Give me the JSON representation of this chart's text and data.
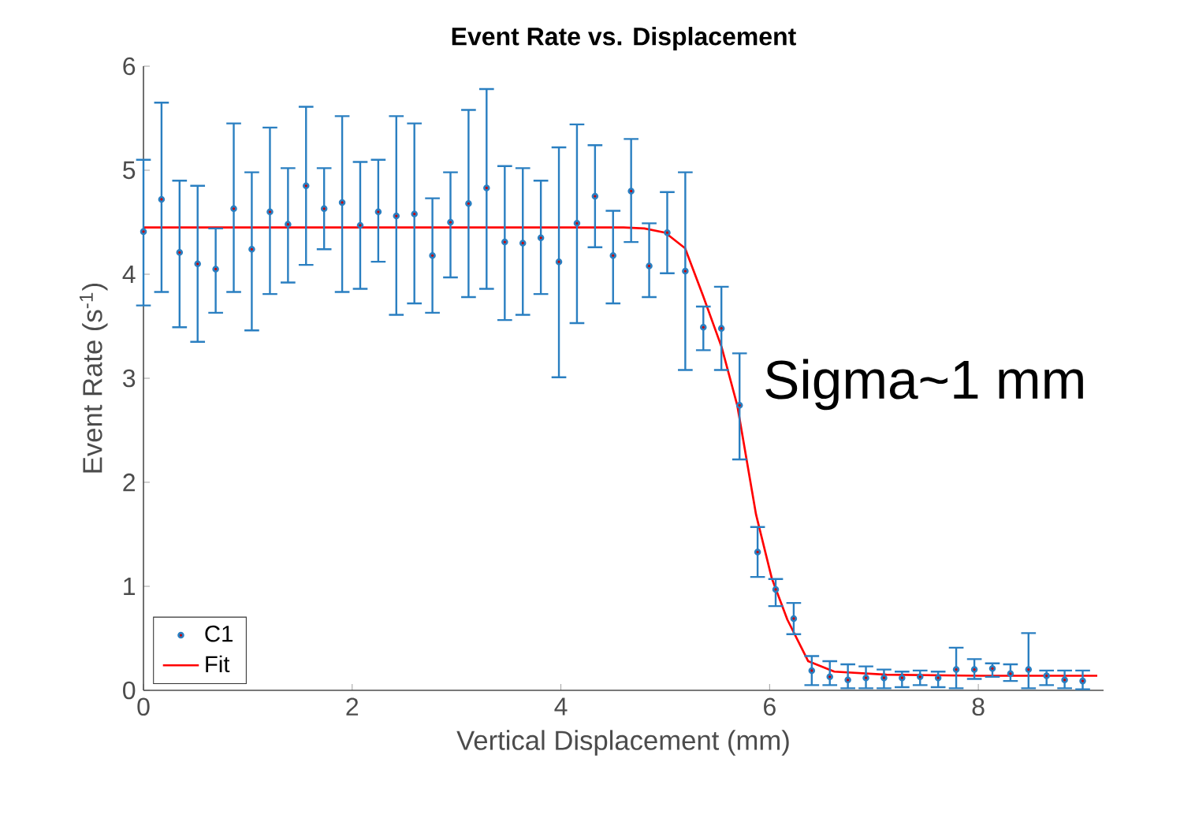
{
  "chart_data": {
    "type": "scatter",
    "title": "Event Rate vs. Displacement",
    "xlabel": "Vertical Displacement (mm)",
    "ylabel": "Event Rate (s$^{-1}$)",
    "xlim": [
      0,
      9.2
    ],
    "ylim": [
      0,
      6
    ],
    "xticks": [
      0,
      2,
      4,
      6,
      8
    ],
    "yticks": [
      0,
      1,
      2,
      3,
      4,
      5,
      6
    ],
    "grid": false,
    "legend": "bottom left",
    "annotations": [
      "Sigma~1 mm"
    ],
    "series": [
      {
        "name": "C1",
        "type": "scatter",
        "marker": "circle",
        "color": "#2a7fc1",
        "x": [
          0,
          0.173,
          0.346,
          0.519,
          0.692,
          0.865,
          1.038,
          1.212,
          1.385,
          1.558,
          1.731,
          1.904,
          2.077,
          2.25,
          2.423,
          2.596,
          2.769,
          2.942,
          3.115,
          3.288,
          3.462,
          3.635,
          3.808,
          3.981,
          4.154,
          4.327,
          4.5,
          4.673,
          4.846,
          5.019,
          5.192,
          5.365,
          5.538,
          5.712,
          5.885,
          6.058,
          6.231,
          6.404,
          6.577,
          6.75,
          6.923,
          7.096,
          7.269,
          7.442,
          7.615,
          7.788,
          7.962,
          8.135,
          8.308,
          8.481,
          8.654,
          8.827,
          9
        ],
        "values": [
          4.41,
          4.72,
          4.21,
          4.1,
          4.05,
          4.63,
          4.24,
          4.6,
          4.48,
          4.85,
          4.63,
          4.69,
          4.47,
          4.6,
          4.56,
          4.58,
          4.18,
          4.5,
          4.68,
          4.83,
          4.31,
          4.3,
          4.35,
          4.12,
          4.49,
          4.75,
          4.18,
          4.8,
          4.08,
          4.4,
          4.03,
          3.49,
          3.48,
          2.74,
          1.33,
          0.97,
          0.69,
          0.19,
          0.13,
          0.1,
          0.12,
          0.12,
          0.12,
          0.13,
          0.12,
          0.2,
          0.2,
          0.21,
          0.16,
          0.2,
          0.14,
          0.1,
          0.09
        ],
        "errors": [
          [
            3.7,
            5.1
          ],
          [
            3.83,
            5.65
          ],
          [
            3.49,
            4.9
          ],
          [
            3.35,
            4.85
          ],
          [
            3.63,
            4.44
          ],
          [
            3.83,
            5.45
          ],
          [
            3.46,
            4.98
          ],
          [
            3.81,
            5.41
          ],
          [
            3.92,
            5.02
          ],
          [
            4.09,
            5.61
          ],
          [
            4.24,
            5.02
          ],
          [
            3.83,
            5.52
          ],
          [
            3.86,
            5.08
          ],
          [
            4.12,
            5.1
          ],
          [
            3.61,
            5.52
          ],
          [
            3.72,
            5.45
          ],
          [
            3.63,
            4.73
          ],
          [
            3.97,
            4.98
          ],
          [
            3.78,
            5.58
          ],
          [
            3.86,
            5.78
          ],
          [
            3.56,
            5.04
          ],
          [
            3.61,
            5.02
          ],
          [
            3.81,
            4.9
          ],
          [
            3.01,
            5.22
          ],
          [
            3.53,
            5.44
          ],
          [
            4.26,
            5.24
          ],
          [
            3.72,
            4.61
          ],
          [
            4.31,
            5.3
          ],
          [
            3.78,
            4.49
          ],
          [
            4.01,
            4.79
          ],
          [
            3.08,
            4.98
          ],
          [
            3.27,
            3.69
          ],
          [
            3.08,
            3.88
          ],
          [
            2.22,
            3.24
          ],
          [
            1.09,
            1.57
          ],
          [
            0.81,
            1.07
          ],
          [
            0.54,
            0.84
          ],
          [
            0.05,
            0.33
          ],
          [
            0.05,
            0.28
          ],
          [
            0.02,
            0.25
          ],
          [
            0.02,
            0.23
          ],
          [
            0.02,
            0.2
          ],
          [
            0.03,
            0.18
          ],
          [
            0.05,
            0.19
          ],
          [
            0.03,
            0.18
          ],
          [
            0.02,
            0.41
          ],
          [
            0.11,
            0.3
          ],
          [
            0.13,
            0.26
          ],
          [
            0.09,
            0.25
          ],
          [
            0.02,
            0.55
          ],
          [
            0.05,
            0.19
          ],
          [
            0.02,
            0.19
          ],
          [
            0.01,
            0.19
          ]
        ]
      },
      {
        "name": "Fit",
        "type": "line",
        "marker": "none",
        "color": "#ff0000",
        "x": [
          0,
          4.6,
          4.8,
          5.0,
          5.19,
          5.36,
          5.54,
          5.69,
          5.87,
          6.02,
          6.17,
          6.32,
          6.37,
          6.62,
          7.12,
          8,
          9.14
        ],
        "values": [
          4.45,
          4.45,
          4.44,
          4.4,
          4.25,
          3.8,
          3.3,
          2.74,
          1.69,
          1.08,
          0.68,
          0.38,
          0.28,
          0.18,
          0.15,
          0.14,
          0.14
        ]
      }
    ]
  }
}
